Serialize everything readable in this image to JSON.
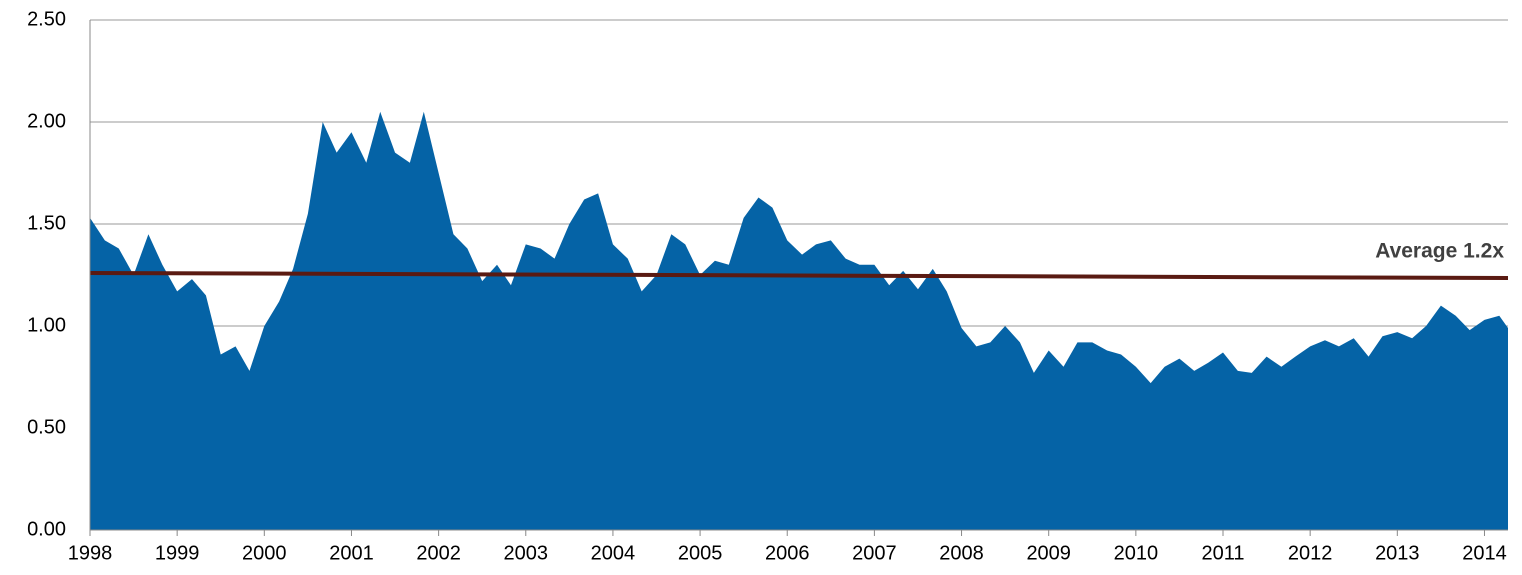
{
  "chart_data": {
    "type": "area",
    "color": "#0563a6",
    "x": [
      1998,
      1998.17,
      1998.33,
      1998.5,
      1998.67,
      1998.83,
      1999,
      1999.17,
      1999.33,
      1999.5,
      1999.67,
      1999.83,
      2000,
      2000.17,
      2000.33,
      2000.5,
      2000.67,
      2000.83,
      2001,
      2001.17,
      2001.33,
      2001.5,
      2001.67,
      2001.83,
      2002,
      2002.17,
      2002.33,
      2002.5,
      2002.67,
      2002.83,
      2003,
      2003.17,
      2003.33,
      2003.5,
      2003.67,
      2003.83,
      2004,
      2004.17,
      2004.33,
      2004.5,
      2004.67,
      2004.83,
      2005,
      2005.17,
      2005.33,
      2005.5,
      2005.67,
      2005.83,
      2006,
      2006.17,
      2006.33,
      2006.5,
      2006.67,
      2006.83,
      2007,
      2007.17,
      2007.33,
      2007.5,
      2007.67,
      2007.83,
      2008,
      2008.17,
      2008.33,
      2008.5,
      2008.67,
      2008.83,
      2009,
      2009.17,
      2009.33,
      2009.5,
      2009.67,
      2009.83,
      2010,
      2010.17,
      2010.33,
      2010.5,
      2010.67,
      2010.83,
      2011,
      2011.17,
      2011.33,
      2011.5,
      2011.67,
      2011.83,
      2012,
      2012.17,
      2012.33,
      2012.5,
      2012.67,
      2012.83,
      2013,
      2013.17,
      2013.33,
      2013.5,
      2013.67,
      2013.83,
      2014,
      2014.17,
      2014.27
    ],
    "values": [
      1.53,
      1.42,
      1.38,
      1.25,
      1.45,
      1.3,
      1.17,
      1.23,
      1.15,
      0.86,
      0.9,
      0.78,
      1.0,
      1.12,
      1.28,
      1.55,
      2.0,
      1.85,
      1.95,
      1.8,
      2.05,
      1.85,
      1.8,
      2.05,
      1.75,
      1.45,
      1.38,
      1.22,
      1.3,
      1.2,
      1.4,
      1.38,
      1.33,
      1.5,
      1.62,
      1.65,
      1.4,
      1.33,
      1.17,
      1.25,
      1.45,
      1.4,
      1.25,
      1.32,
      1.3,
      1.53,
      1.63,
      1.58,
      1.42,
      1.35,
      1.4,
      1.42,
      1.33,
      1.3,
      1.3,
      1.2,
      1.27,
      1.18,
      1.28,
      1.17,
      0.99,
      0.9,
      0.92,
      1.0,
      0.92,
      0.77,
      0.88,
      0.8,
      0.92,
      0.92,
      0.88,
      0.86,
      0.8,
      0.72,
      0.8,
      0.84,
      0.78,
      0.82,
      0.87,
      0.78,
      0.77,
      0.85,
      0.8,
      0.85,
      0.9,
      0.93,
      0.9,
      0.94,
      0.85,
      0.95,
      0.97,
      0.94,
      1.0,
      1.1,
      1.05,
      0.98,
      1.03,
      1.05,
      0.99
    ],
    "average_line": {
      "label": "Average 1.2x",
      "x": [
        1998,
        2014.27
      ],
      "values": [
        1.26,
        1.235
      ],
      "color": "#5a1a12"
    },
    "xlim": [
      1998,
      2014.27
    ],
    "xticks": [
      1998,
      1999,
      2000,
      2001,
      2002,
      2003,
      2004,
      2005,
      2006,
      2007,
      2008,
      2009,
      2010,
      2011,
      2012,
      2013,
      2014
    ],
    "ylim": [
      0,
      2.5
    ],
    "yticks": [
      {
        "value": 0,
        "label": "0.00"
      },
      {
        "value": 0.5,
        "label": "0.50"
      },
      {
        "value": 1,
        "label": "1.00"
      },
      {
        "value": 1.5,
        "label": "1.50"
      },
      {
        "value": 2,
        "label": "2.00"
      },
      {
        "value": 2.5,
        "label": "2.50"
      }
    ],
    "grid": true
  }
}
